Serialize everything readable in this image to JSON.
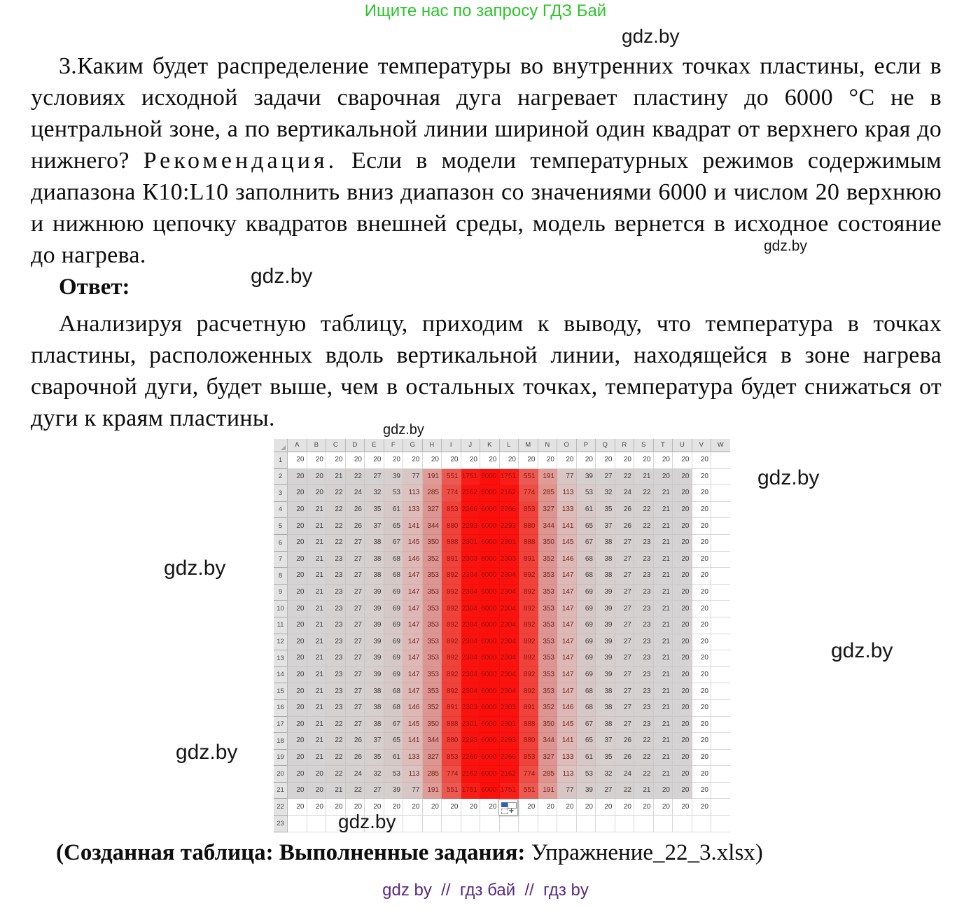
{
  "page": {
    "notice": "Ищите нас по запросу ГДЗ Бай",
    "watermark": "gdz.by",
    "footer": "gdz by  //  гдз бай  //  гдз by"
  },
  "colors": {
    "notice_green": "#2bc52b",
    "footer_purple": "#5a2a87",
    "heat_red_max": "#fb0f0b",
    "shade_gray": "#d5d3d3"
  },
  "task": {
    "text_before": "3.Каким будет распределение температуры во внутренних точках пластины, если в условиях исходной задачи сварочная дуга нагревает пластину до 6000 °С не в центральной зоне, а по вертикальной линии шириной один квадрат от верхнего края до нижнего? ",
    "recommendation_word": "Рекомендация.",
    "text_after": " Если в модели температурных режимов содержимым диапазона К10:L10 заполнить вниз диапазон со значениями 6000 и числом 20 верхнюю и нижнюю цепочку квадратов внешней среды, модель вернется в исходное состояние до нагрева."
  },
  "answer": {
    "label": "Ответ:",
    "text": "Анализируя расчетную таблицу, приходим к выводу, что температура в точках пластины, расположенных вдоль вертикальной линии, находящейся в зоне нагрева сварочной дуги, будет выше, чем в остальных точках, температура будет снижаться от дуги к краям пластины."
  },
  "caption": {
    "bold": "(Созданная таблица: Выполненные задания:",
    "normal": " Упражнение_22_3.xlsx)"
  },
  "spreadsheet": {
    "column_headers": [
      "A",
      "B",
      "C",
      "D",
      "E",
      "F",
      "G",
      "H",
      "I",
      "J",
      "K",
      "L",
      "M",
      "N",
      "O",
      "P",
      "Q",
      "R",
      "S",
      "T",
      "U",
      "V",
      "W"
    ],
    "row_headers": [
      1,
      2,
      3,
      4,
      5,
      6,
      7,
      8,
      9,
      10,
      11,
      12,
      13,
      14,
      15,
      16,
      17,
      18,
      19,
      20,
      21,
      22,
      23
    ],
    "shaded_range": "A2:U21",
    "fill_options_cell": "L22",
    "rows": [
      [
        20,
        20,
        20,
        20,
        20,
        20,
        20,
        20,
        20,
        20,
        20,
        20,
        20,
        20,
        20,
        20,
        20,
        20,
        20,
        20,
        20,
        20
      ],
      [
        20,
        20,
        21,
        22,
        27,
        39,
        77,
        191,
        551,
        1751,
        6000,
        1751,
        551,
        191,
        77,
        39,
        27,
        22,
        21,
        20,
        20,
        20
      ],
      [
        20,
        20,
        22,
        24,
        32,
        53,
        113,
        285,
        774,
        2162,
        6000,
        2162,
        774,
        285,
        113,
        53,
        32,
        24,
        22,
        21,
        20,
        20
      ],
      [
        20,
        21,
        22,
        26,
        35,
        61,
        133,
        327,
        853,
        2266,
        6000,
        2266,
        853,
        327,
        133,
        61,
        35,
        26,
        22,
        21,
        20,
        20
      ],
      [
        20,
        21,
        22,
        26,
        37,
        65,
        141,
        344,
        880,
        2293,
        6000,
        2293,
        880,
        344,
        141,
        65,
        37,
        26,
        22,
        21,
        20,
        20
      ],
      [
        20,
        21,
        22,
        27,
        38,
        67,
        145,
        350,
        888,
        2301,
        6000,
        2301,
        888,
        350,
        145,
        67,
        38,
        27,
        23,
        21,
        20,
        20
      ],
      [
        20,
        21,
        23,
        27,
        38,
        68,
        146,
        352,
        891,
        2303,
        6000,
        2303,
        891,
        352,
        146,
        68,
        38,
        27,
        23,
        21,
        20,
        20
      ],
      [
        20,
        21,
        23,
        27,
        38,
        68,
        147,
        353,
        892,
        2304,
        6000,
        2304,
        892,
        353,
        147,
        68,
        38,
        27,
        23,
        21,
        20,
        20
      ],
      [
        20,
        21,
        23,
        27,
        39,
        69,
        147,
        353,
        892,
        2304,
        6000,
        2304,
        892,
        353,
        147,
        69,
        39,
        27,
        23,
        21,
        20,
        20
      ],
      [
        20,
        21,
        23,
        27,
        39,
        69,
        147,
        353,
        892,
        2304,
        6000,
        2304,
        892,
        353,
        147,
        69,
        39,
        27,
        23,
        21,
        20,
        20
      ],
      [
        20,
        21,
        23,
        27,
        39,
        69,
        147,
        353,
        892,
        2304,
        6000,
        2304,
        892,
        353,
        147,
        69,
        39,
        27,
        23,
        21,
        20,
        20
      ],
      [
        20,
        21,
        23,
        27,
        39,
        69,
        147,
        353,
        892,
        2304,
        6000,
        2304,
        892,
        353,
        147,
        69,
        39,
        27,
        23,
        21,
        20,
        20
      ],
      [
        20,
        21,
        23,
        27,
        39,
        69,
        147,
        353,
        892,
        2304,
        6000,
        2304,
        892,
        353,
        147,
        69,
        39,
        27,
        23,
        21,
        20,
        20
      ],
      [
        20,
        21,
        23,
        27,
        39,
        69,
        147,
        353,
        892,
        2304,
        6000,
        2304,
        892,
        353,
        147,
        69,
        39,
        27,
        23,
        21,
        20,
        20
      ],
      [
        20,
        21,
        23,
        27,
        38,
        68,
        147,
        353,
        892,
        2304,
        6000,
        2304,
        892,
        353,
        147,
        68,
        38,
        27,
        23,
        21,
        20,
        20
      ],
      [
        20,
        21,
        23,
        27,
        38,
        68,
        146,
        352,
        891,
        2303,
        6000,
        2303,
        891,
        352,
        146,
        68,
        38,
        27,
        23,
        21,
        20,
        20
      ],
      [
        20,
        21,
        22,
        27,
        38,
        67,
        145,
        350,
        888,
        2301,
        6000,
        2301,
        888,
        350,
        145,
        67,
        38,
        27,
        23,
        21,
        20,
        20
      ],
      [
        20,
        21,
        22,
        26,
        37,
        65,
        141,
        344,
        880,
        2293,
        6000,
        2293,
        880,
        344,
        141,
        65,
        37,
        26,
        22,
        21,
        20,
        20
      ],
      [
        20,
        21,
        22,
        26,
        35,
        61,
        133,
        327,
        853,
        2266,
        6000,
        2266,
        853,
        327,
        133,
        61,
        35,
        26,
        22,
        21,
        20,
        20
      ],
      [
        20,
        20,
        22,
        24,
        32,
        53,
        113,
        285,
        774,
        2162,
        6000,
        2162,
        774,
        285,
        113,
        53,
        32,
        24,
        22,
        21,
        20,
        20
      ],
      [
        20,
        20,
        21,
        22,
        27,
        39,
        77,
        191,
        551,
        1751,
        6000,
        1751,
        551,
        191,
        77,
        39,
        27,
        22,
        21,
        20,
        20,
        20
      ],
      [
        20,
        20,
        20,
        20,
        20,
        20,
        20,
        20,
        20,
        20,
        20,
        20,
        20,
        20,
        20,
        20,
        20,
        20,
        20,
        20,
        20,
        20
      ],
      []
    ]
  }
}
